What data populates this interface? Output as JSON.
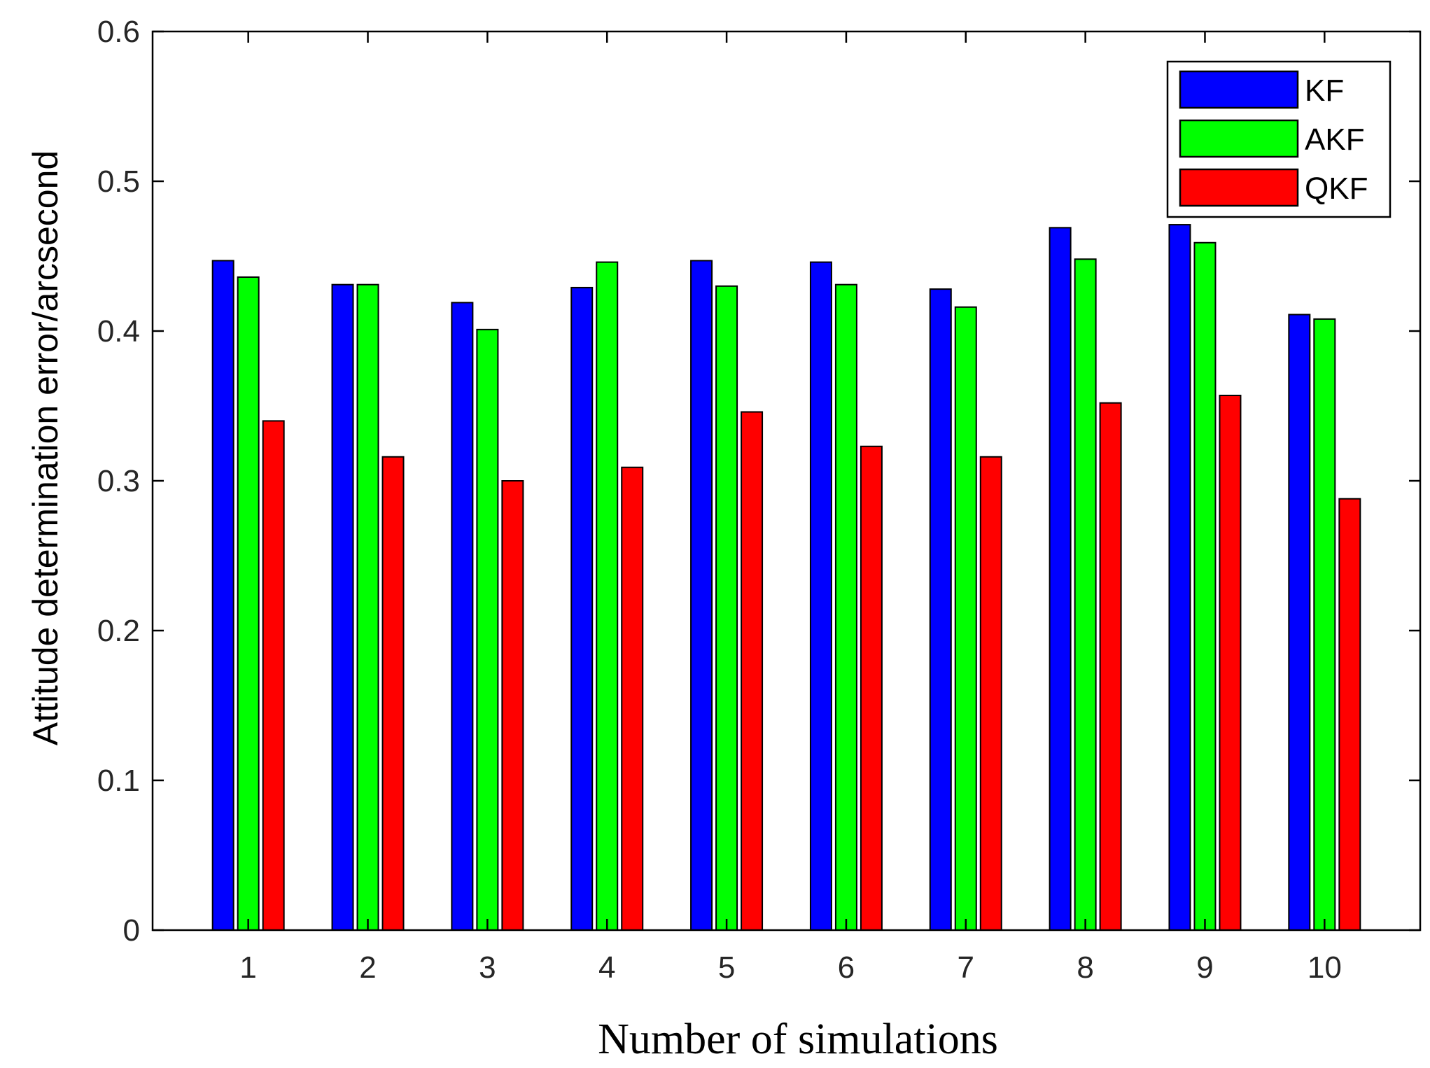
{
  "chart_data": {
    "type": "bar",
    "title": "",
    "xlabel": "Number of simulations",
    "ylabel": "Attitude determination error/arcsecond",
    "categories": [
      "1",
      "2",
      "3",
      "4",
      "5",
      "6",
      "7",
      "8",
      "9",
      "10"
    ],
    "ylim": [
      0,
      0.6
    ],
    "yticks": [
      "0",
      "0.1",
      "0.2",
      "0.3",
      "0.4",
      "0.5",
      "0.6"
    ],
    "grid": false,
    "legend_position": "top-right",
    "series": [
      {
        "name": "KF",
        "color": "#0000ff",
        "values": [
          0.447,
          0.431,
          0.419,
          0.429,
          0.447,
          0.446,
          0.428,
          0.469,
          0.471,
          0.411
        ]
      },
      {
        "name": "AKF",
        "color": "#00ff00",
        "values": [
          0.436,
          0.431,
          0.401,
          0.446,
          0.43,
          0.431,
          0.416,
          0.448,
          0.459,
          0.408
        ]
      },
      {
        "name": "QKF",
        "color": "#ff0000",
        "values": [
          0.34,
          0.316,
          0.3,
          0.309,
          0.346,
          0.323,
          0.316,
          0.352,
          0.357,
          0.288
        ]
      }
    ]
  }
}
